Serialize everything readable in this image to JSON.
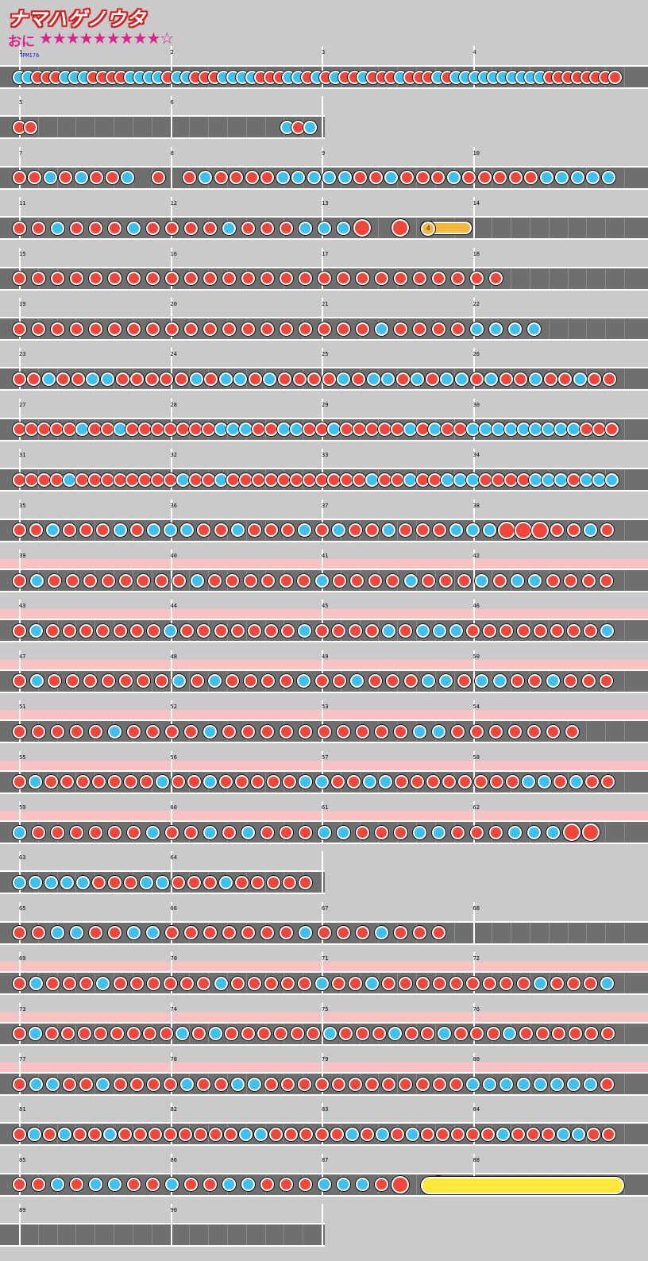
{
  "title": "ナマハゲノウタ",
  "difficulty": "おに",
  "stars": "★★★★★★★★★☆",
  "bpm": "BPM176",
  "colors": {
    "don": "#f2463a",
    "ka": "#3cc2f0",
    "gogo": "#f8c2c2",
    "lane": "#6f6f6f",
    "background": "#cacaca"
  },
  "rows": [
    {
      "measures": [
        "1",
        "2",
        "3",
        "4"
      ],
      "gogo": false,
      "notes": "kkdddkkkddddkkkkdkkdddkkkkdddkkdkdkddkdddkdddkdkkkkkkkkkkdddddddd"
    },
    {
      "measures": [
        "5",
        "6"
      ],
      "gogo": false,
      "notes": "dd.....................kdk"
    },
    {
      "measures": [
        "7",
        "8",
        "9",
        "10"
      ],
      "gogo": false,
      "notes": "ddkdkddk.d.dkddddkkkkkddkdddkdddddkkkkk"
    },
    {
      "measures": [
        "11",
        "12",
        "13",
        "14"
      ],
      "gogo": false,
      "notes": "ddkdddkddddkdddkkkD.D...",
      "drumroll": {
        "hits": "4"
      }
    },
    {
      "measures": [
        "15",
        "16",
        "17",
        "18"
      ],
      "gogo": false,
      "notes": "dddddddddddddddddddddddddd"
    },
    {
      "measures": [
        "19",
        "20",
        "21",
        "22"
      ],
      "gogo": false,
      "notes": "dddddddddddddddddddkddddkkkk"
    },
    {
      "measures": [
        "23",
        "24",
        "25",
        "26"
      ],
      "gogo": false,
      "notes": "ddkddkkdddddkdkkdkddddkdkkdkdkkdkddkddkdd"
    },
    {
      "measures": [
        "27",
        "28",
        "29",
        "30"
      ],
      "gogo": false,
      "notes": "dddddkddkdddddddkkkddkkddkdddddkdkddkkkkkkkkkddd"
    },
    {
      "measures": [
        "31",
        "32",
        "33",
        "34"
      ],
      "gogo": false,
      "notes": "ddddkddddddddkddkdddddddddddkddkddkkkddddkkkdkkk"
    },
    {
      "measures": [
        "35",
        "36",
        "37",
        "38"
      ],
      "gogo": false,
      "notes": "ddkdddkdkkkddkdddkdkddkdddkkkDDDddkd"
    },
    {
      "measures": [
        "39",
        "40",
        "41",
        "42"
      ],
      "gogo": true,
      "notes": "dkddddddddkddddddkddddkdddkdkkdddd"
    },
    {
      "measures": [
        "43",
        "44",
        "45",
        "46"
      ],
      "gogo": true,
      "notes": "dkdddddddkdddddddkddddkdkkkddddddddk"
    },
    {
      "measures": [
        "47",
        "48",
        "49",
        "50"
      ],
      "gogo": true,
      "notes": "dkdddddddkdkddddkddkdddkkdkkddkddd"
    },
    {
      "measures": [
        "51",
        "52",
        "53",
        "54"
      ],
      "gogo": true,
      "notes": "dddddkddddkddddddddddkkddddddd"
    },
    {
      "measures": [
        "55",
        "56",
        "57",
        "58"
      ],
      "gogo": true,
      "notes": "dkdddddddkddkdddddkkddkkddddddddkkdkdd"
    },
    {
      "measures": [
        "59",
        "60",
        "61",
        "62"
      ],
      "gogo": true,
      "notes": "kddddddkddkdkdddkkdddkkdddkkkDD"
    },
    {
      "measures": [
        "63",
        "64"
      ],
      "gogo": false,
      "notes": "kkkkkdddkkdddkddddd"
    },
    {
      "measures": [
        "65",
        "66",
        "67",
        "68"
      ],
      "gogo": false,
      "notes": "ddkkddkkdddddddkdddkddd"
    },
    {
      "measures": [
        "69",
        "70",
        "71",
        "72"
      ],
      "gogo": true,
      "notes": "dkdddkddddddkdddddkddkdddddddddkdddk"
    },
    {
      "measures": [
        "73",
        "74",
        "75",
        "76"
      ],
      "gogo": true,
      "notes": "dkddddddddkdkddddddkdddkddkdddkdddddd"
    },
    {
      "measures": [
        "77",
        "78",
        "79",
        "80"
      ],
      "gogo": true,
      "notes": "dkkddkddddkddkkddddddddddddkkkkkkkkd"
    },
    {
      "measures": [
        "81",
        "82",
        "83",
        "84"
      ],
      "gogo": false,
      "notes": "dkdkddkddddddddkkdddddkdkdkdddddkdddkkdd"
    },
    {
      "measures": [
        "85",
        "86",
        "87",
        "88"
      ],
      "gogo": false,
      "notes": "ddkdkkddkddkkdddkkkdD.D",
      "roll": true
    },
    {
      "measures": [
        "89",
        "90"
      ],
      "gogo": false,
      "notes": ""
    }
  ]
}
